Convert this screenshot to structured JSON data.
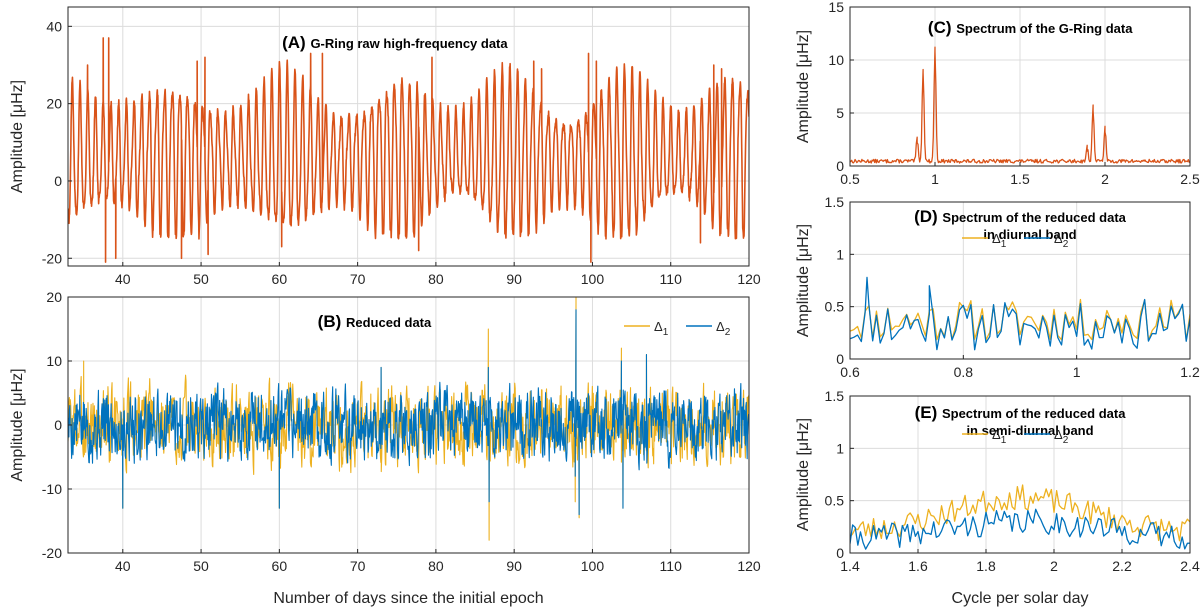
{
  "colors": {
    "orange": "#D95319",
    "yellow": "#EDB120",
    "blue": "#0072BD"
  },
  "shared_labels": {
    "xlabel_left": "Number of days since the initial epoch",
    "xlabel_right": "Cycle per solar day"
  },
  "chart_data": [
    {
      "id": "A",
      "type": "line",
      "title_letter": "(A)",
      "title": "G-Ring raw high-frequency data",
      "xlabel": "",
      "ylabel": "Amplitude [μHz]",
      "xlim": [
        33,
        120
      ],
      "ylim": [
        -22,
        45
      ],
      "xticks": [
        40,
        50,
        60,
        70,
        80,
        90,
        100,
        110,
        120
      ],
      "yticks": [
        -20,
        0,
        20,
        40
      ],
      "grid": true,
      "series": [
        {
          "color": "#D95319",
          "kind": "tidal",
          "period": 1.0,
          "amp": 19,
          "offset": 6,
          "envelope_period": 14.8,
          "envelope_depth": 0.38,
          "min_floor": -12,
          "peaks": [
            [
              35.5,
              30
            ],
            [
              37.5,
              37
            ],
            [
              38.2,
              37
            ],
            [
              49.5,
              31
            ],
            [
              50.5,
              32
            ],
            [
              64,
              33
            ],
            [
              65.5,
              33
            ],
            [
              79.5,
              32
            ],
            [
              92.5,
              31
            ],
            [
              93.5,
              29
            ],
            [
              99.5,
              33
            ],
            [
              100.5,
              31
            ],
            [
              115.5,
              30
            ],
            [
              116.5,
              29
            ]
          ],
          "troughs": [
            [
              37.8,
              -21
            ],
            [
              39.1,
              -20
            ],
            [
              47.5,
              -20
            ],
            [
              50.9,
              -19
            ],
            [
              60.3,
              -17
            ],
            [
              77.8,
              -18
            ],
            [
              99.8,
              -21
            ],
            [
              113.8,
              -16
            ]
          ]
        }
      ]
    },
    {
      "id": "B",
      "type": "line",
      "title_letter": "(B)",
      "title": "Reduced data",
      "xlabel": "Number of days since the initial epoch",
      "ylabel": "Amplitude [μHz]",
      "xlim": [
        33,
        120
      ],
      "ylim": [
        -20,
        20
      ],
      "xticks": [
        40,
        50,
        60,
        70,
        80,
        90,
        100,
        110,
        120
      ],
      "yticks": [
        -20,
        -10,
        0,
        10,
        20
      ],
      "grid": true,
      "legend": [
        "Δ1",
        "Δ2"
      ],
      "legend_position": "top-right",
      "series": [
        {
          "name": "Δ1",
          "color": "#EDB120",
          "kind": "noise",
          "amp": 3.8,
          "spikes": [
            [
              35,
              10
            ],
            [
              40,
              -13
            ],
            [
              60,
              -13
            ],
            [
              73,
              9
            ],
            [
              86.7,
              15
            ],
            [
              86.8,
              -18
            ],
            [
              97.8,
              -12
            ],
            [
              97.9,
              20
            ],
            [
              98.3,
              -14.5
            ],
            [
              103.7,
              12
            ],
            [
              103.9,
              -13
            ],
            [
              106.9,
              11
            ]
          ]
        },
        {
          "name": "Δ2",
          "color": "#0072BD",
          "kind": "noise",
          "amp": 3.5,
          "spikes": [
            [
              40,
              -13
            ],
            [
              60,
              -13
            ],
            [
              73,
              9
            ],
            [
              86.7,
              9
            ],
            [
              86.8,
              -12
            ],
            [
              97.8,
              -8
            ],
            [
              97.9,
              18
            ],
            [
              98.3,
              -14
            ],
            [
              103.7,
              10
            ],
            [
              103.9,
              -13
            ],
            [
              106.9,
              11
            ]
          ]
        }
      ]
    },
    {
      "id": "C",
      "type": "line",
      "title_letter": "(C)",
      "title": "Spectrum of the G-Ring data",
      "xlabel": "",
      "ylabel": "Amplitude [μHz]",
      "xlim": [
        0.5,
        2.5
      ],
      "ylim": [
        0,
        15
      ],
      "xticks": [
        0.5,
        1,
        1.5,
        2,
        2.5
      ],
      "yticks": [
        0,
        5,
        10,
        15
      ],
      "grid": true,
      "series": [
        {
          "color": "#D95319",
          "kind": "spectrum",
          "base": 0.35,
          "noise": 0.35,
          "peaks": [
            [
              0.93,
              8.8
            ],
            [
              1.0,
              10.8
            ],
            [
              0.895,
              2.2
            ],
            [
              1.93,
              5.2
            ],
            [
              2.0,
              3.2
            ],
            [
              1.895,
              1.4
            ]
          ]
        }
      ]
    },
    {
      "id": "D",
      "type": "line",
      "title_letter": "(D)",
      "title": "Spectrum of the reduced data",
      "title_line2": "in diurnal band",
      "xlabel": "",
      "ylabel": "Amplitude [μHz]",
      "xlim": [
        0.6,
        1.2
      ],
      "ylim": [
        0,
        1.5
      ],
      "xticks": [
        0.6,
        0.8,
        1,
        1.2
      ],
      "yticks": [
        0,
        0.5,
        1,
        1.5
      ],
      "grid": true,
      "legend": [
        "Δ1",
        "Δ2"
      ],
      "legend_position": "top-center",
      "series": [
        {
          "name": "Δ1",
          "color": "#EDB120",
          "kind": "spectrum_noise",
          "base": 0.37,
          "noise": 0.2,
          "seed": 11
        },
        {
          "name": "Δ2",
          "color": "#0072BD",
          "kind": "spectrum_noise",
          "base": 0.33,
          "noise": 0.22,
          "seed": 11,
          "jitter": 0.05,
          "extras": [
            [
              0.63,
              0.78
            ],
            [
              0.74,
              0.7
            ]
          ]
        }
      ]
    },
    {
      "id": "E",
      "type": "line",
      "title_letter": "(E)",
      "title": "Spectrum of the reduced data",
      "title_line2": "in semi-diurnal band",
      "xlabel": "Cycle per solar day",
      "ylabel": "Amplitude [μHz]",
      "xlim": [
        1.4,
        2.4
      ],
      "ylim": [
        0,
        1.5
      ],
      "xticks": [
        1.4,
        1.6,
        1.8,
        2,
        2.2,
        2.4
      ],
      "yticks": [
        0,
        0.5,
        1,
        1.5
      ],
      "grid": true,
      "legend": [
        "Δ1",
        "Δ2"
      ],
      "legend_position": "top-center",
      "series": [
        {
          "name": "Δ1",
          "color": "#EDB120",
          "kind": "spectrum_hump",
          "base": 0.2,
          "hump": 0.33,
          "center": 1.9,
          "width": 0.28,
          "noise": 0.12,
          "seed": 23
        },
        {
          "name": "Δ2",
          "color": "#0072BD",
          "kind": "spectrum_hump",
          "base": 0.14,
          "hump": 0.16,
          "center": 1.92,
          "width": 0.3,
          "noise": 0.12,
          "seed": 41
        }
      ]
    }
  ]
}
